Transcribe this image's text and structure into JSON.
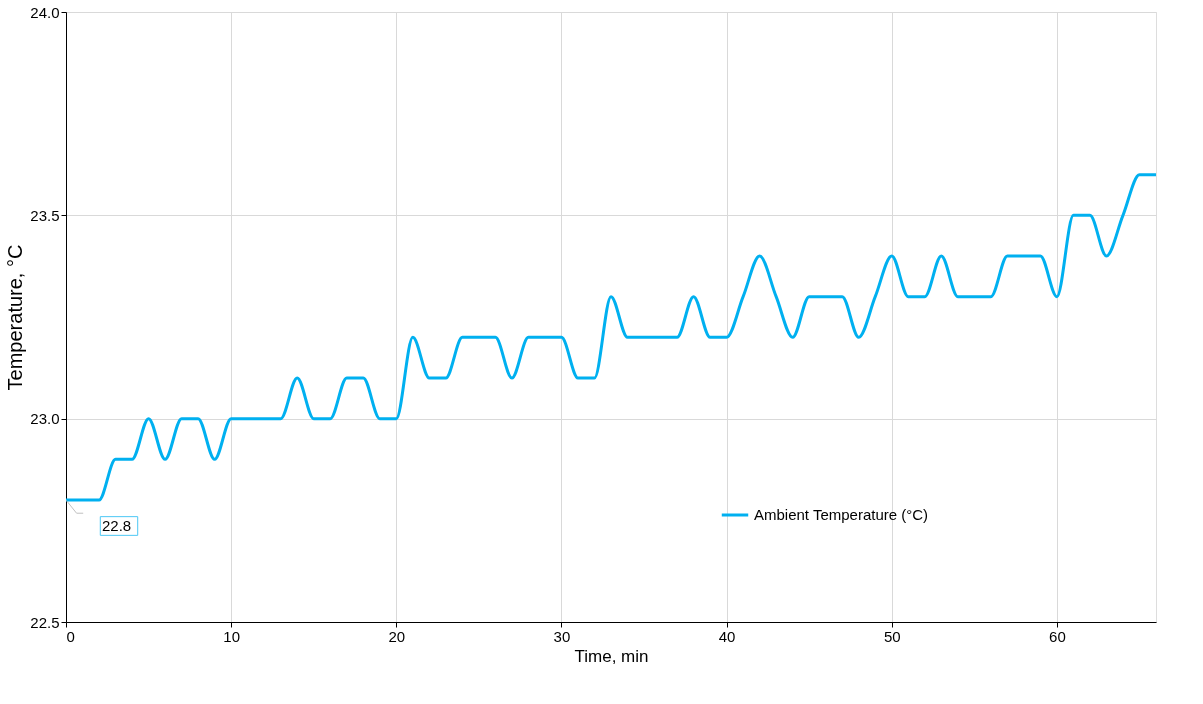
{
  "chart_data": {
    "type": "line",
    "xlabel": "Time, min",
    "ylabel": "Temperature, °C",
    "x": [
      0,
      1,
      2,
      3,
      4,
      5,
      6,
      7,
      8,
      9,
      10,
      11,
      12,
      13,
      14,
      15,
      16,
      17,
      18,
      19,
      20,
      21,
      22,
      23,
      24,
      25,
      26,
      27,
      28,
      29,
      30,
      31,
      32,
      33,
      34,
      35,
      36,
      37,
      38,
      39,
      40,
      41,
      42,
      43,
      44,
      45,
      46,
      47,
      48,
      49,
      50,
      51,
      52,
      53,
      54,
      55,
      56,
      57,
      58,
      59,
      60,
      61,
      62,
      63,
      64,
      65,
      66
    ],
    "series": [
      {
        "name": "Ambient Temperature (°C)",
        "color": "#00b0f0",
        "values": [
          22.8,
          22.8,
          22.8,
          22.9,
          22.9,
          23.0,
          22.9,
          23.0,
          23.0,
          22.9,
          23.0,
          23.0,
          23.0,
          23.0,
          23.1,
          23.0,
          23.0,
          23.1,
          23.1,
          23.0,
          23.0,
          23.2,
          23.1,
          23.1,
          23.2,
          23.2,
          23.2,
          23.1,
          23.2,
          23.2,
          23.2,
          23.1,
          23.1,
          23.3,
          23.2,
          23.2,
          23.2,
          23.2,
          23.3,
          23.2,
          23.2,
          23.3,
          23.4,
          23.3,
          23.2,
          23.3,
          23.3,
          23.3,
          23.2,
          23.3,
          23.4,
          23.3,
          23.3,
          23.4,
          23.3,
          23.3,
          23.3,
          23.4,
          23.4,
          23.4,
          23.3,
          23.5,
          23.5,
          23.4,
          23.5,
          23.6,
          23.6
        ]
      }
    ],
    "xlim": [
      0,
      66
    ],
    "xticks": [
      0,
      10,
      20,
      30,
      40,
      50,
      60
    ],
    "ylim": [
      22.5,
      24.0
    ],
    "yticks": [
      {
        "value": 22.5,
        "label": "22.5"
      },
      {
        "value": 23.0,
        "label": "23.0"
      },
      {
        "value": 23.5,
        "label": "23.5"
      },
      {
        "value": 24.0,
        "label": "24.0"
      }
    ],
    "annotations": [
      {
        "text": "22.8",
        "x": 0,
        "y": 22.8
      }
    ],
    "grid": true,
    "legend": "bottom right",
    "marker": "none",
    "line_style": "solid"
  }
}
